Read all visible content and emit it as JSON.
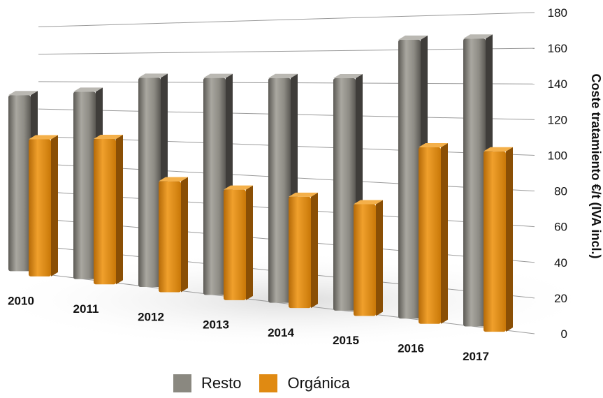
{
  "chart_data": {
    "type": "bar",
    "categories": [
      "2010",
      "2011",
      "2012",
      "2013",
      "2014",
      "2015",
      "2016",
      "2017"
    ],
    "series": [
      {
        "name": "Resto",
        "values": [
          130,
          133,
          143,
          143,
          143,
          143,
          166,
          166
        ],
        "color": "#8a8880"
      },
      {
        "name": "Orgánica",
        "values": [
          100,
          102,
          75,
          72,
          70,
          68,
          104,
          103
        ],
        "color": "#e08a12"
      }
    ],
    "ylabel": "Coste tratamiento €/t (IVA incl.)",
    "ylim": [
      0,
      180
    ],
    "yticks": [
      0,
      20,
      40,
      60,
      80,
      100,
      120,
      140,
      160,
      180
    ],
    "grid": true,
    "legend_position": "bottom-center"
  }
}
